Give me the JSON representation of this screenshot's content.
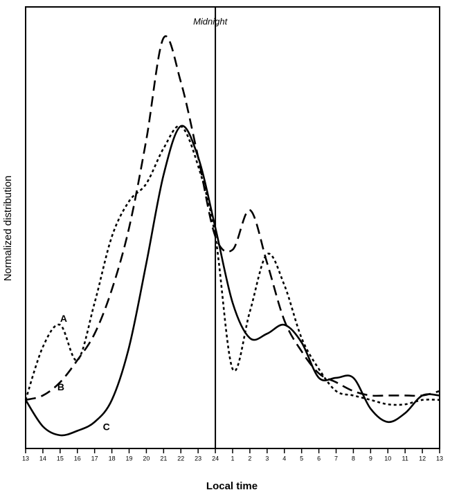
{
  "chart_data": {
    "type": "line",
    "xlabel": "Local time",
    "ylabel": "Normalized distribution",
    "categories": [
      "13",
      "14",
      "15",
      "16",
      "17",
      "18",
      "19",
      "20",
      "21",
      "22",
      "23",
      "24",
      "1",
      "2",
      "3",
      "4",
      "5",
      "6",
      "7",
      "8",
      "9",
      "10",
      "11",
      "12",
      "13"
    ],
    "annotations": [
      {
        "text": "Midnight",
        "x": "24"
      }
    ],
    "ylim": [
      0,
      100
    ],
    "series": [
      {
        "name": "A",
        "color": "#000000",
        "dash": "4 4",
        "values": [
          11,
          23,
          28,
          20,
          33,
          48,
          56,
          60,
          68,
          73,
          64,
          48,
          18,
          31,
          44,
          37,
          25,
          18,
          13,
          12,
          11,
          10,
          10,
          11,
          11
        ]
      },
      {
        "name": "B",
        "color": "#000000",
        "dash": "15 8",
        "values": [
          11,
          12,
          15,
          20,
          26,
          36,
          50,
          70,
          93,
          83,
          66,
          48,
          45,
          54,
          42,
          29,
          22,
          17,
          15,
          13,
          12,
          12,
          12,
          12,
          13
        ]
      },
      {
        "name": "C",
        "color": "#000000",
        "dash": "none",
        "values": [
          11,
          5,
          3,
          4,
          6,
          11,
          23,
          42,
          62,
          73,
          66,
          50,
          33,
          25,
          26,
          28,
          24,
          16,
          16,
          16,
          9,
          6,
          8,
          12,
          12
        ]
      }
    ]
  }
}
